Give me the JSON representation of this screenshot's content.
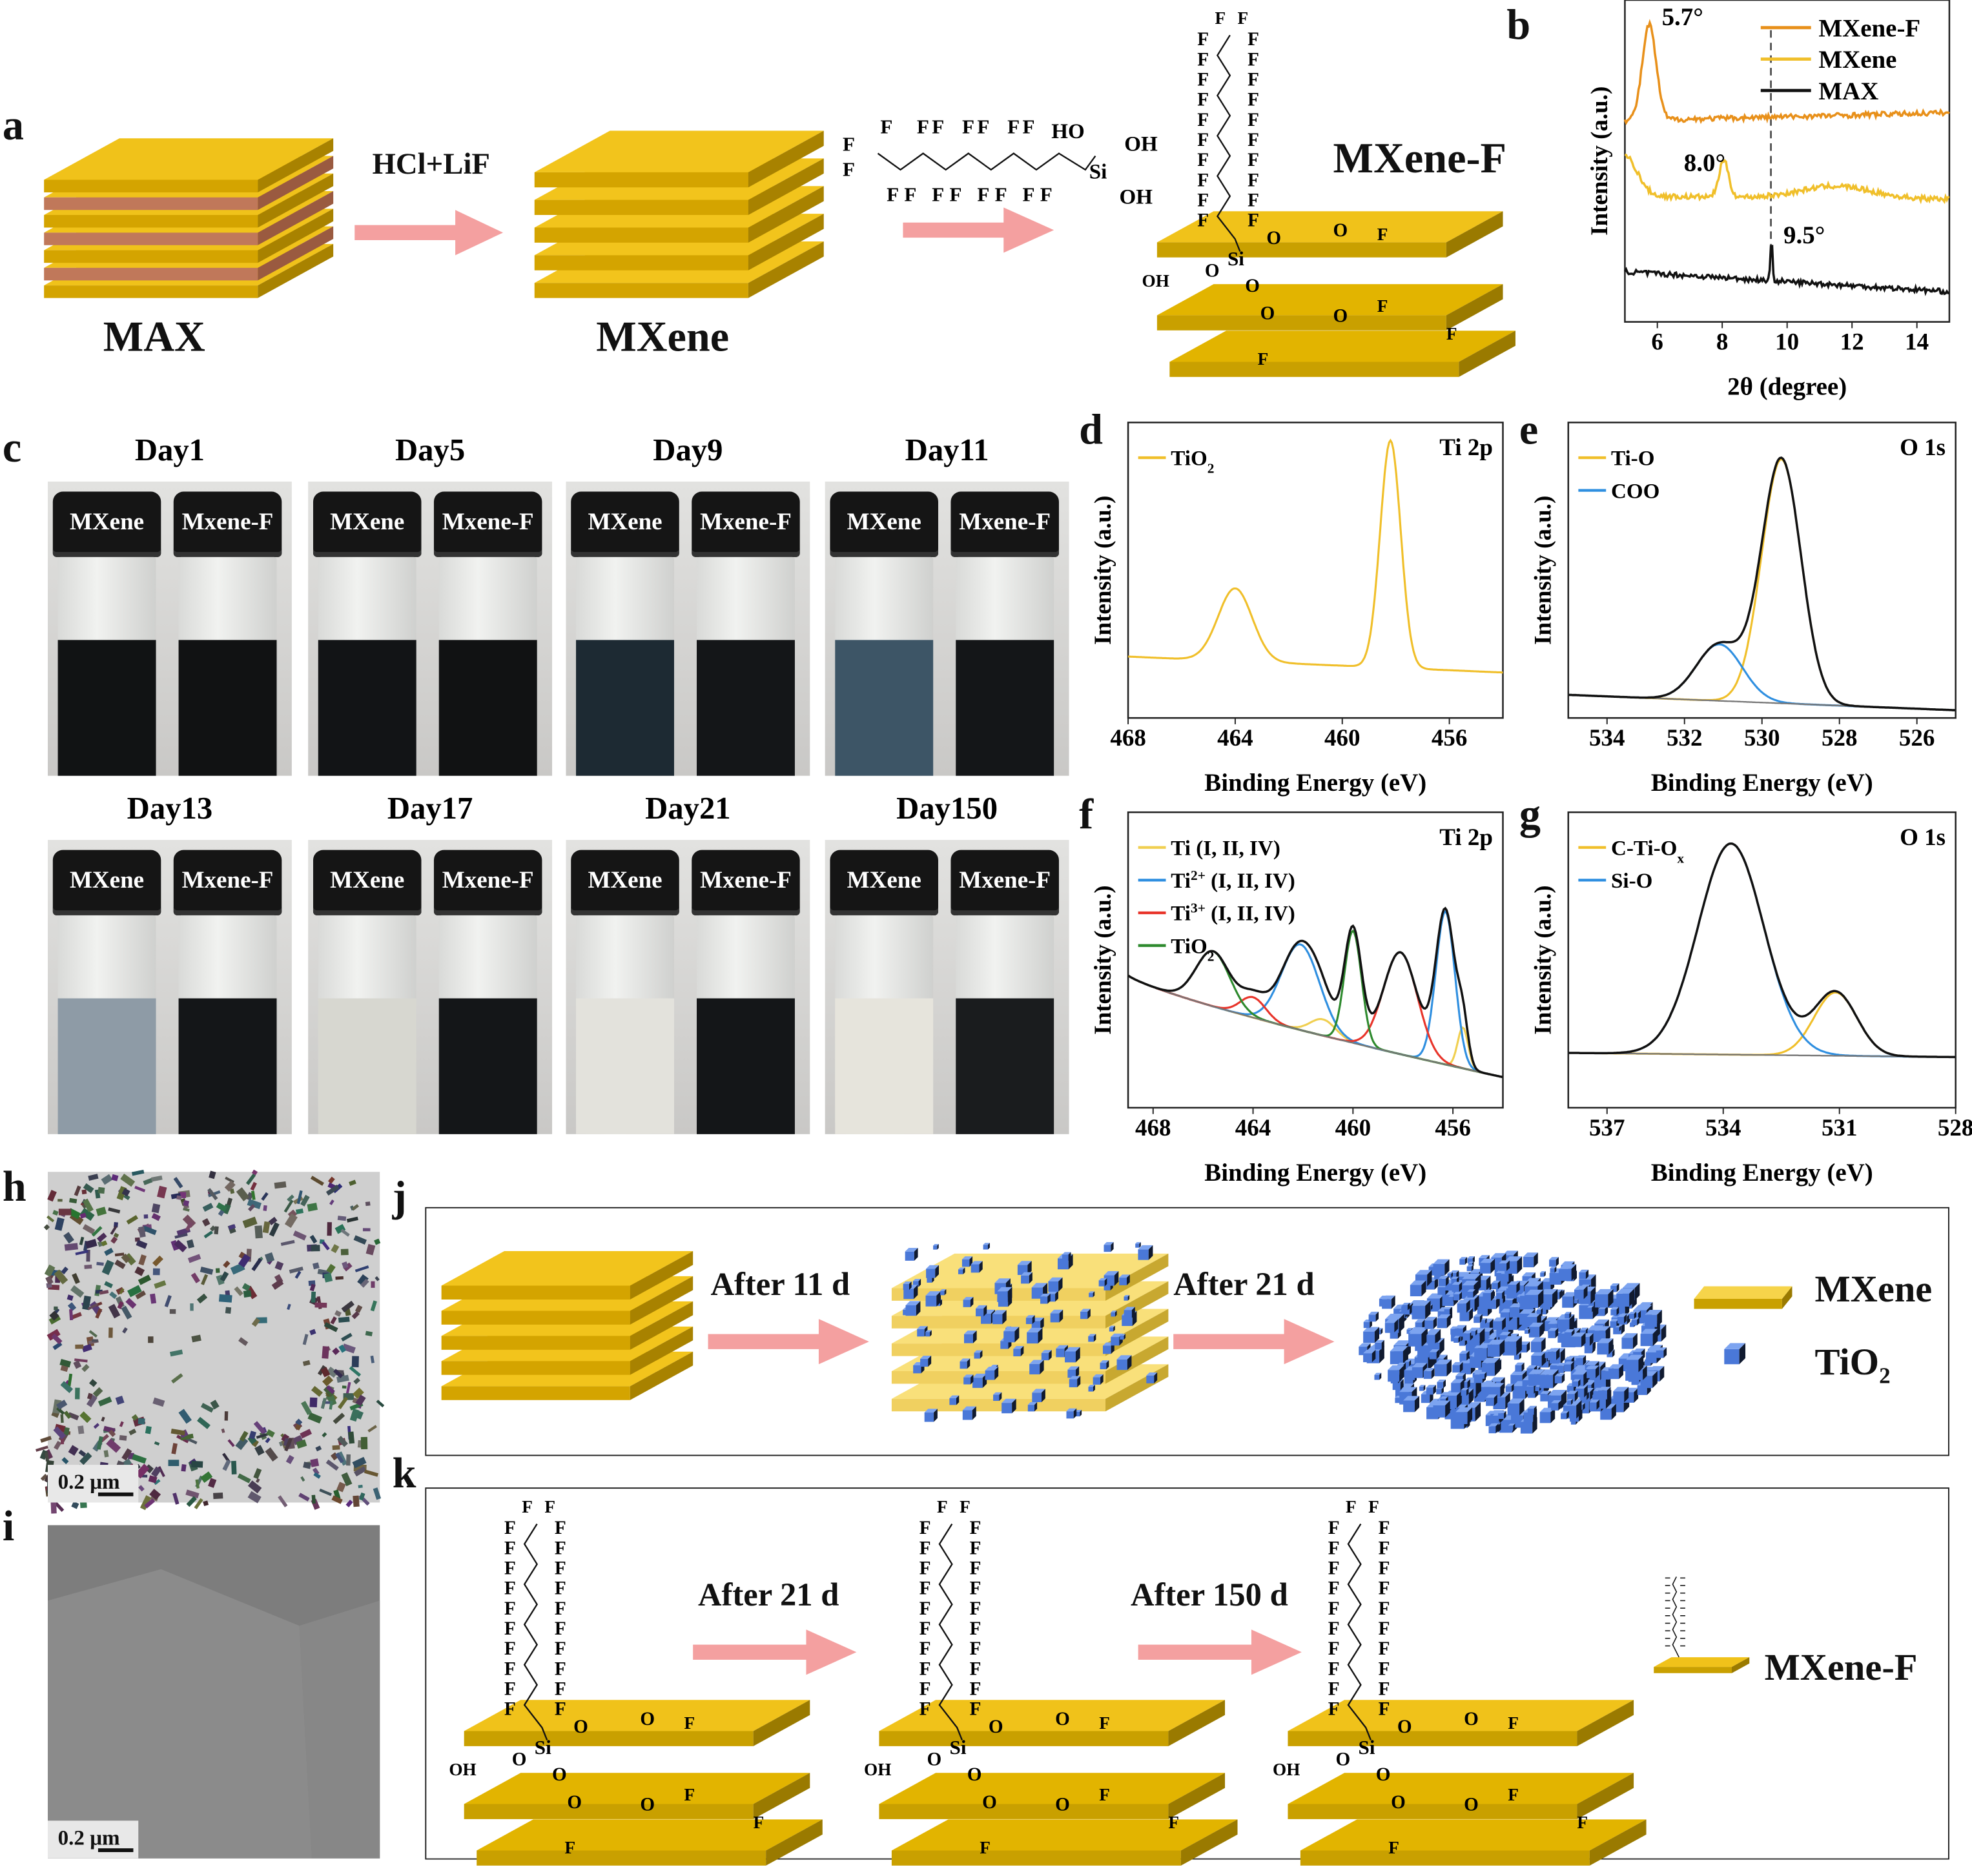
{
  "panel_labels": {
    "a": "a",
    "b": "b",
    "c": "c",
    "d": "d",
    "e": "e",
    "f": "f",
    "g": "g",
    "h": "h",
    "i": "i",
    "j": "j",
    "k": "k"
  },
  "panel_a": {
    "max_label": "MAX",
    "mxene_label": "MXene",
    "mxenef_label": "MXene-F",
    "reagent_label": "HCl+LiF",
    "molecule": {
      "f_atom": "F",
      "ho": "HO",
      "oh": "OH",
      "si": "Si",
      "o": "O"
    },
    "colors": {
      "gold": "#d4a400",
      "al_layer": "#c0785a",
      "arrow": "#f4a0a0"
    }
  },
  "panel_c": {
    "vial_left_label": "MXene",
    "vial_right_label": "Mxene-F",
    "days": [
      {
        "title": "Day1",
        "left_liquid": "#111314",
        "right_liquid": "#111213"
      },
      {
        "title": "Day5",
        "left_liquid": "#121416",
        "right_liquid": "#111213"
      },
      {
        "title": "Day9",
        "left_liquid": "#1d2a33",
        "right_liquid": "#141618"
      },
      {
        "title": "Day11",
        "left_liquid": "#3d5566",
        "right_liquid": "#141618"
      },
      {
        "title": "Day13",
        "left_liquid": "#8e9ba6",
        "right_liquid": "#141618"
      },
      {
        "title": "Day17",
        "left_liquid": "#d7d7d0",
        "right_liquid": "#141618"
      },
      {
        "title": "Day21",
        "left_liquid": "#e3e2dc",
        "right_liquid": "#141618"
      },
      {
        "title": "Day150",
        "left_liquid": "#e6e4dc",
        "right_liquid": "#1a1c1e"
      }
    ]
  },
  "panel_h": {
    "scale_bar": "0.2 μm"
  },
  "panel_i": {
    "scale_bar": "0.2 μm"
  },
  "panel_j": {
    "step1": "After 11 d",
    "step2": "After 21 d",
    "legend_mxene": "MXene",
    "legend_tio2": "TiO",
    "legend_tio2_sub": "2",
    "cube_color": "#4a78d8"
  },
  "panel_k": {
    "step1": "After 21 d",
    "step2": "After 150 d",
    "legend_label": "MXene-F"
  },
  "chart_data": [
    {
      "id": "b",
      "type": "line",
      "title": "",
      "xlabel": "2θ (degree)",
      "ylabel": "Intensity (a.u.)",
      "xlim": [
        5,
        15
      ],
      "ylim": [
        0,
        3.2
      ],
      "xticks": [
        6,
        8,
        10,
        12,
        14
      ],
      "reversed": false,
      "noise": 0.025,
      "legend": "top-right",
      "series": [
        {
          "name": "MXene-F",
          "color": "#e8901a",
          "base": [
            2.0,
            2.08
          ],
          "peaks": [
            [
              5.75,
              0.95,
              0.5
            ]
          ]
        },
        {
          "name": "MXene",
          "color": "#f0bf2a",
          "base": [
            1.25,
            1.22
          ],
          "peaks": [
            [
              5.0,
              0.4,
              0.9
            ],
            [
              8.05,
              0.36,
              0.35
            ],
            [
              11.5,
              0.12,
              2.5
            ]
          ]
        },
        {
          "name": "MAX",
          "color": "#111111",
          "base": [
            0.5,
            0.3
          ],
          "peaks": [
            [
              9.52,
              0.38,
              0.08
            ]
          ]
        }
      ],
      "annotations": [
        {
          "text": "5.7°",
          "x": 5.75
        },
        {
          "text": "8.0°",
          "x": 8.0
        },
        {
          "text": "9.5°",
          "x": 9.5
        }
      ],
      "dashed_line_x": 9.5
    },
    {
      "id": "d",
      "type": "line",
      "xlabel": "Binding Energy (eV)",
      "ylabel": "Intensity (a.u.)",
      "corner_label": "Ti 2p",
      "xlim": [
        468,
        454
      ],
      "ylim": [
        0,
        1.3
      ],
      "xticks": [
        468,
        464,
        460,
        456
      ],
      "reversed": true,
      "envelope": false,
      "baseline": [
        0.27,
        0.2
      ],
      "legend": "top-left",
      "series": [
        {
          "name": "TiO",
          "sub": "2",
          "color": "#f0bf2a",
          "peaks": [
            [
              464.0,
              0.32,
              1.5
            ],
            [
              458.2,
              1.0,
              0.9
            ]
          ]
        }
      ]
    },
    {
      "id": "e",
      "type": "line",
      "xlabel": "Binding Energy (eV)",
      "ylabel": "Intensity (a.u.)",
      "corner_label": "O 1s",
      "xlim": [
        535,
        525
      ],
      "ylim": [
        0,
        1.15
      ],
      "xticks": [
        534,
        532,
        530,
        528,
        526
      ],
      "reversed": true,
      "envelope": true,
      "baseline": [
        0.09,
        0.03
      ],
      "legend": "top-left",
      "series": [
        {
          "name": "Ti-O",
          "color": "#f0bf2a",
          "peaks": [
            [
              529.5,
              0.95,
              1.2
            ]
          ]
        },
        {
          "name": "COO",
          "color": "#2f8fe0",
          "peaks": [
            [
              531.1,
              0.22,
              1.4
            ]
          ]
        }
      ]
    },
    {
      "id": "f",
      "type": "line",
      "xlabel": "Binding Energy (eV)",
      "ylabel": "Intensity (a.u.)",
      "corner_label": "Ti 2p",
      "xlim": [
        469,
        454
      ],
      "ylim": [
        -0.15,
        1.3
      ],
      "xticks": [
        468,
        464,
        460,
        456
      ],
      "reversed": true,
      "envelope": true,
      "baseline": [
        0.5,
        0.0
      ],
      "legend": "top-left",
      "series": [
        {
          "name": "Ti (I, II, IV)",
          "color": "#f0cf50",
          "peaks": [
            [
              461.2,
              0.08,
              1.2
            ],
            [
              455.6,
              0.2,
              0.5
            ]
          ]
        },
        {
          "name": "Ti",
          "sup": "2+",
          "rest": " (I, II, IV)",
          "color": "#2f8fe0",
          "peaks": [
            [
              462.1,
              0.42,
              1.8
            ],
            [
              456.3,
              0.75,
              0.9
            ]
          ]
        },
        {
          "name": "Ti",
          "sup": "3+",
          "rest": " (I, II, IV)",
          "color": "#e8342a",
          "peaks": [
            [
              464.0,
              0.1,
              1.2
            ],
            [
              458.1,
              0.5,
              1.6
            ]
          ]
        },
        {
          "name": "TiO",
          "sub": "2",
          "color": "#2e8a2e",
          "peaks": [
            [
              465.6,
              0.27,
              1.6
            ],
            [
              460.0,
              0.55,
              0.8
            ]
          ]
        }
      ]
    },
    {
      "id": "g",
      "type": "line",
      "xlabel": "Binding Energy (eV)",
      "ylabel": "Intensity (a.u.)",
      "corner_label": "O 1s",
      "xlim": [
        538,
        528
      ],
      "ylim": [
        -0.25,
        1.15
      ],
      "xticks": [
        537,
        534,
        531,
        528
      ],
      "reversed": true,
      "envelope": true,
      "baseline": [
        0.01,
        -0.01
      ],
      "legend": "top-left",
      "series": [
        {
          "name": "C-Ti-O",
          "sub": "x",
          "color": "#f0bf2a",
          "peaks": [
            [
              531.1,
              0.3,
              1.3
            ]
          ]
        },
        {
          "name": "Si-O",
          "color": "#2f8fe0",
          "peaks": [
            [
              533.8,
              1.0,
              2.0
            ]
          ]
        }
      ]
    }
  ]
}
